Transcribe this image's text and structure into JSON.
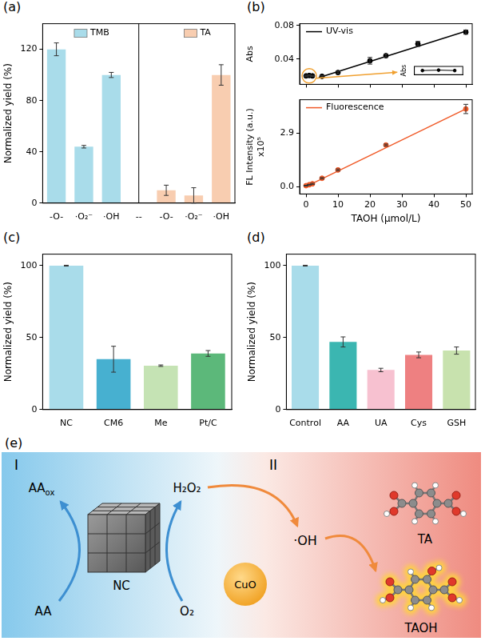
{
  "chart_data": [
    {
      "panel": "(a)",
      "type": "bar",
      "categories": [
        "-O-",
        "·O₂⁻",
        "·OH",
        "--",
        "-O-",
        "·O₂⁻",
        "·OH"
      ],
      "y_label": "Normalized yield (%)",
      "ylim": [
        0,
        140
      ],
      "yticks": [
        0,
        40,
        80,
        120
      ],
      "legend": "top",
      "series": [
        {
          "name": "TMB",
          "color": "#a9dcea",
          "values": [
            120,
            44,
            100,
            null,
            null,
            null,
            null
          ],
          "errors": [
            5,
            1,
            2,
            null,
            null,
            null,
            null
          ]
        },
        {
          "name": "TA",
          "color": "#f8cdb0",
          "values": [
            null,
            null,
            null,
            null,
            10,
            6,
            100
          ],
          "errors": [
            null,
            null,
            null,
            null,
            4,
            6,
            8
          ]
        }
      ]
    },
    {
      "panel": "(b)",
      "type": "scatter",
      "x_label": "TAOH (μmol/L)",
      "xlim": [
        -2,
        52
      ],
      "xticks": [
        0,
        10,
        20,
        30,
        40,
        50
      ],
      "subplots": [
        {
          "tick_labels": "y",
          "y_label": "Abs",
          "ylim": [
            0.01,
            0.082
          ],
          "yticks": [
            0.04,
            0.08
          ],
          "legend": "upper left",
          "series": [
            {
              "name": "UV-vis",
              "color": "#000000",
              "marker": "circle",
              "x": [
                0,
                1,
                2,
                5,
                10,
                20,
                25,
                35,
                50
              ],
              "values": [
                0.02,
                0.0205,
                0.02,
                0.0195,
                0.024,
                0.038,
                0.044,
                0.058,
                0.072
              ],
              "errors": [
                0.0008,
                0.0006,
                0.0006,
                0.0008,
                0.0015,
                0.004,
                0.002,
                0.003,
                0.0025
              ],
              "fit": {
                "x": [
                  4,
                  50
                ],
                "values": [
                  0.018,
                  0.073
                ]
              }
            }
          ],
          "inset": {
            "y_label": "Abs",
            "tick_labels": false,
            "x": [
              0,
              1,
              2
            ],
            "values": [
              0.02,
              0.0205,
              0.02
            ],
            "xlim": [
              -0.5,
              2.5
            ],
            "ylim": [
              0.015,
              0.025
            ]
          }
        },
        {
          "y_label": "FL Intensity (a.u.) x10⁵",
          "ylim": [
            -0.4,
            4.7
          ],
          "yticks": [
            {
              "value": 0,
              "label": "0.0"
            },
            2.9
          ],
          "legend": "upper left",
          "series": [
            {
              "name": "Fluorescence",
              "color": "#f05a28",
              "marker": "circle",
              "x": [
                0,
                1,
                2,
                5,
                10,
                25,
                50
              ],
              "values": [
                0.05,
                0.1,
                0.15,
                0.45,
                0.9,
                2.25,
                4.2
              ],
              "errors": [
                0.02,
                0.02,
                0.03,
                0.04,
                0.05,
                0.05,
                0.25
              ],
              "fit": {
                "x": [
                  0,
                  50
                ],
                "values": [
                  0.0,
                  4.2
                ]
              }
            }
          ]
        }
      ]
    },
    {
      "panel": "(c)",
      "type": "bar",
      "categories": [
        "NC",
        "CM6",
        "Me",
        "Pt/C"
      ],
      "values": [
        100,
        35,
        30.5,
        39
      ],
      "errors": [
        0.3,
        9,
        0.5,
        2
      ],
      "colors": [
        "#a9dcea",
        "#47b0d0",
        "#c5e3b4",
        "#5cb87a"
      ],
      "y_label": "Normalized yield (%)",
      "ylim": [
        0,
        108
      ],
      "yticks": [
        0,
        50,
        100
      ]
    },
    {
      "panel": "(d)",
      "type": "bar",
      "categories": [
        "Control",
        "AA",
        "UA",
        "Cys",
        "GSH"
      ],
      "values": [
        100,
        47,
        27.5,
        38,
        41
      ],
      "errors": [
        0.3,
        3.5,
        1.2,
        2,
        2.5
      ],
      "colors": [
        "#a9dcea",
        "#3bb6b1",
        "#f7c1d0",
        "#ee8081",
        "#c8e2ae"
      ],
      "y_label": "Normalized yield (%)",
      "ylim": [
        0,
        108
      ],
      "yticks": [
        0,
        50,
        100
      ]
    }
  ],
  "diagram": {
    "panel": "(e)",
    "sections": [
      "I",
      "II"
    ],
    "reductant": "AA",
    "oxidized": {
      "text": "AA",
      "sub": "ox"
    },
    "nanozyme": "NC",
    "oxygen": "O₂",
    "peroxide": "H₂O₂",
    "catalyst": "CuO",
    "radical": "·OH",
    "probe": "TA",
    "product": "TAOH"
  }
}
